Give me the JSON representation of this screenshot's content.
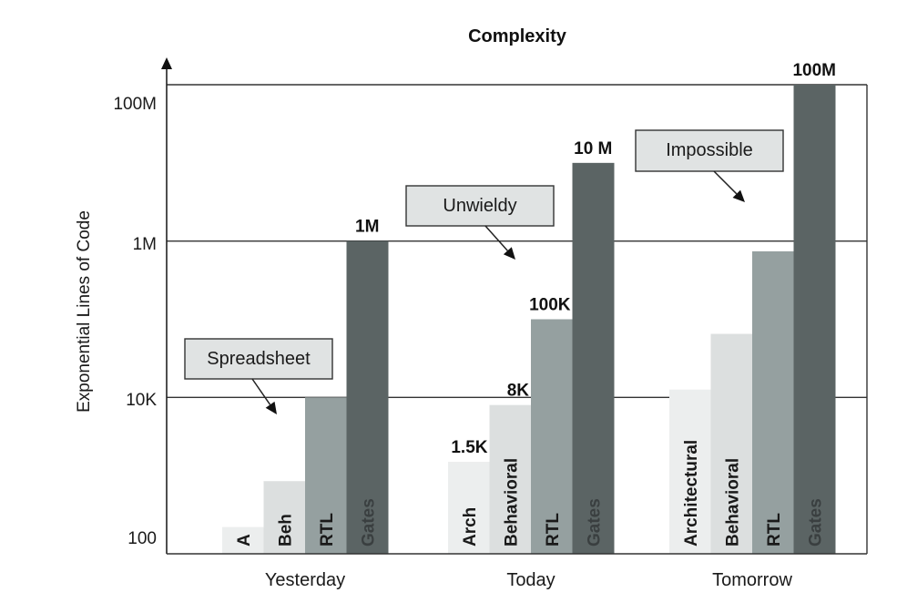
{
  "chart_data": {
    "type": "bar",
    "title": "Complexity",
    "xlabel": "",
    "ylabel": "Exponential Lines of Code",
    "yscale": "log",
    "ylim": [
      100,
      100000000
    ],
    "y_ticks": [
      {
        "value": 100,
        "label": "100"
      },
      {
        "value": 10000,
        "label": "10K"
      },
      {
        "value": 1000000,
        "label": "1M"
      },
      {
        "value": 100000000,
        "label": "100M"
      }
    ],
    "gridlines": [
      10000,
      1000000,
      100000000
    ],
    "grid": true,
    "legend": "none",
    "categories": [
      "Yesterday",
      "Today",
      "Tomorrow"
    ],
    "levels": [
      {
        "name": "Architectural",
        "color": "#eceeee"
      },
      {
        "name": "Behavioral",
        "color": "#dcdfdf"
      },
      {
        "name": "RTL",
        "color": "#95a0a0"
      },
      {
        "name": "Gates",
        "color": "#5b6464"
      }
    ],
    "groups": [
      {
        "category": "Yesterday",
        "bars": [
          {
            "level": "Architectural",
            "label": "A",
            "value": 220,
            "value_label": ""
          },
          {
            "level": "Behavioral",
            "label": "Beh",
            "value": 850,
            "value_label": ""
          },
          {
            "level": "RTL",
            "label": "RTL",
            "value": 10000,
            "value_label": ""
          },
          {
            "level": "Gates",
            "label": "Gates",
            "value": 1000000,
            "value_label": "1M"
          }
        ],
        "callout": "Spreadsheet"
      },
      {
        "category": "Today",
        "bars": [
          {
            "level": "Architectural",
            "label": "Arch",
            "value": 1500,
            "value_label": "1.5K"
          },
          {
            "level": "Behavioral",
            "label": "Behavioral",
            "value": 8000,
            "value_label": "8K"
          },
          {
            "level": "RTL",
            "label": "RTL",
            "value": 100000,
            "value_label": "100K"
          },
          {
            "level": "Gates",
            "label": "Gates",
            "value": 10000000,
            "value_label": "10 M"
          }
        ],
        "callout": "Unwieldy"
      },
      {
        "category": "Tomorrow",
        "bars": [
          {
            "level": "Architectural",
            "label": "Architectural",
            "value": 12600,
            "value_label": ""
          },
          {
            "level": "Behavioral",
            "label": "Behavioral",
            "value": 65000,
            "value_label": ""
          },
          {
            "level": "RTL",
            "label": "RTL",
            "value": 740000,
            "value_label": ""
          },
          {
            "level": "Gates",
            "label": "Gates",
            "value": 100000000,
            "value_label": "100M"
          }
        ],
        "callout": "Impossible"
      }
    ],
    "callout_style": {
      "fill": "#e0e3e3",
      "stroke": "#333333"
    }
  }
}
